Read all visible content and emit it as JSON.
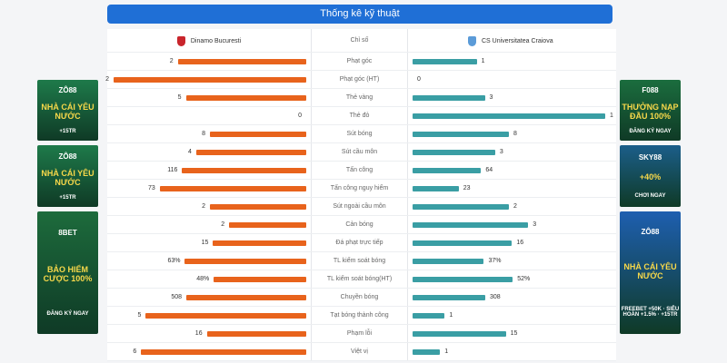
{
  "title": "Thống kê kỹ thuật",
  "header": {
    "home": "Dinamo Bucuresti",
    "label": "Chỉ số",
    "away": "CS Universitatea Craiova"
  },
  "colors": {
    "home_bar": "#e8631c",
    "away_bar": "#3a9ea4",
    "title_bg": "#1f6fd6"
  },
  "stats": [
    {
      "label": "Phạt góc",
      "home": "2",
      "away": "1"
    },
    {
      "label": "Phạt góc (HT)",
      "home": "2",
      "away": "0"
    },
    {
      "label": "Thẻ vàng",
      "home": "5",
      "away": "3"
    },
    {
      "label": "Thẻ đỏ",
      "home": "0",
      "away": "1"
    },
    {
      "label": "Sút bóng",
      "home": "8",
      "away": "8"
    },
    {
      "label": "Sút cầu môn",
      "home": "4",
      "away": "3"
    },
    {
      "label": "Tấn công",
      "home": "116",
      "away": "64"
    },
    {
      "label": "Tấn công nguy hiểm",
      "home": "73",
      "away": "23"
    },
    {
      "label": "Sút ngoài cầu môn",
      "home": "2",
      "away": "2"
    },
    {
      "label": "Cản bóng",
      "home": "2",
      "away": "3"
    },
    {
      "label": "Đá phạt trực tiếp",
      "home": "15",
      "away": "16"
    },
    {
      "label": "TL kiểm soát bóng",
      "home": "63%",
      "away": "37%"
    },
    {
      "label": "TL kiểm soát bóng(HT)",
      "home": "48%",
      "away": "52%"
    },
    {
      "label": "Chuyền bóng",
      "home": "508",
      "away": "308"
    },
    {
      "label": "Tạt bóng thành công",
      "home": "5",
      "away": "1"
    },
    {
      "label": "Phạm lỗi",
      "home": "16",
      "away": "15"
    },
    {
      "label": "Việt vị",
      "home": "6",
      "away": "1"
    }
  ],
  "ads": {
    "left": [
      {
        "brand": "ZÔ88",
        "headline": "NHÀ CÁI YÊU NƯỚC",
        "sub": "+15TR",
        "bg": "#1e7a4a"
      },
      {
        "brand": "ZÔ88",
        "headline": "NHÀ CÁI YÊU NƯỚC",
        "sub": "+15TR",
        "bg": "#1e7a4a"
      },
      {
        "brand": "8BET",
        "headline": "BẢO HIỂM CƯỢC 100%",
        "sub": "ĐĂNG KÝ NGAY",
        "bg": "#1d6b3c"
      }
    ],
    "right": [
      {
        "brand": "F088",
        "headline": "THƯỞNG NẠP ĐẦU 100%",
        "sub": "ĐĂNG KÝ NGAY",
        "bg": "#1b6d3e"
      },
      {
        "brand": "SKY88",
        "headline": "+40%",
        "sub": "CHƠI NGAY",
        "bg": "#1b5e8a"
      },
      {
        "brand": "ZÔ88",
        "headline": "NHÀ CÁI YÊU NƯỚC",
        "sub": "FREEBET +50K · SIÊU HOÀN +1.5% · +15TR",
        "bg": "#1e5fb0"
      }
    ]
  }
}
